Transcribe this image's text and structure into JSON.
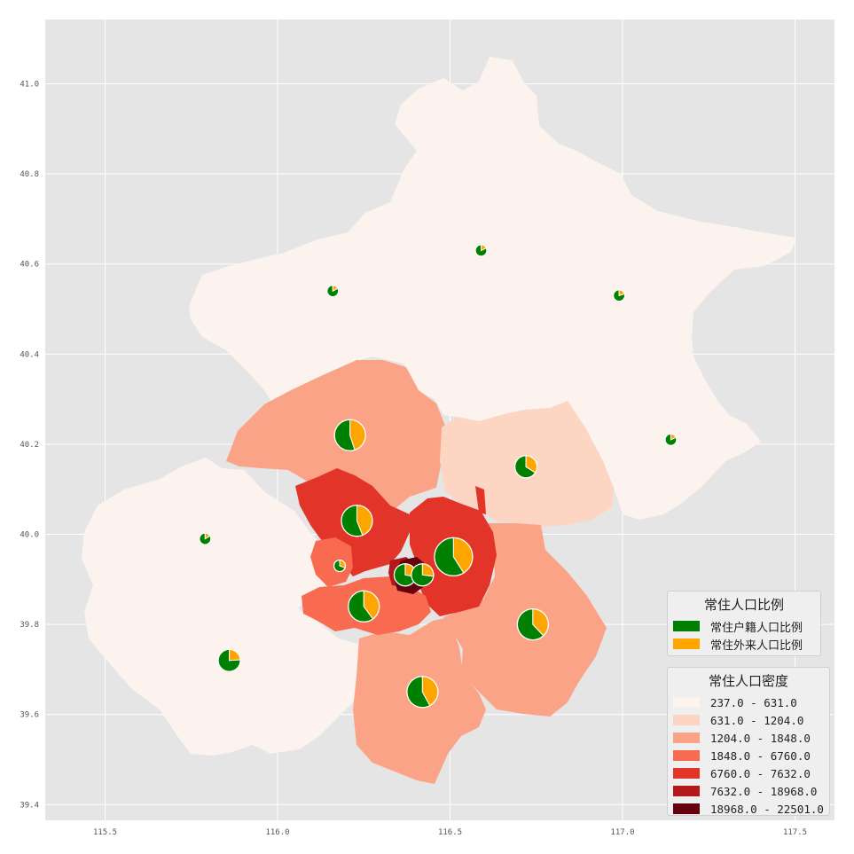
{
  "map": {
    "x_ticks": [
      "115.5",
      "116.0",
      "116.5",
      "117.0",
      "117.5"
    ],
    "y_ticks": [
      "41.0",
      "40.8",
      "40.6",
      "40.4",
      "40.2",
      "40.0",
      "39.8",
      "39.6",
      "39.4"
    ],
    "background_color": "#e5e5e5",
    "grid_color": "#ffffff"
  },
  "ratio_legend": {
    "title": "常住人口比例",
    "items": [
      {
        "label": "常住户籍人口比例",
        "color": "#008000"
      },
      {
        "label": "常住外来人口比例",
        "color": "#ffa500"
      }
    ]
  },
  "density_legend": {
    "title": "常住人口密度",
    "items": [
      {
        "label": "237.0 - 631.0",
        "color": "#fdf3ee"
      },
      {
        "label": "631.0 - 1204.0",
        "color": "#fcd5c3"
      },
      {
        "label": "1204.0 - 1848.0",
        "color": "#fba386"
      },
      {
        "label": "1848.0 - 6760.0",
        "color": "#f86b50"
      },
      {
        "label": "6760.0 - 7632.0",
        "color": "#e3342a"
      },
      {
        "label": "7632.0 - 18968.0",
        "color": "#b3181d"
      },
      {
        "label": "18968.0 - 22501.0",
        "color": "#67000d"
      }
    ]
  },
  "pies": [
    {
      "lon": 116.59,
      "lat": 40.63,
      "size": "small",
      "registered_share": 0.82
    },
    {
      "lon": 116.16,
      "lat": 40.54,
      "size": "small",
      "registered_share": 0.83
    },
    {
      "lon": 116.99,
      "lat": 40.53,
      "size": "small",
      "registered_share": 0.8
    },
    {
      "lon": 117.14,
      "lat": 40.21,
      "size": "small",
      "registered_share": 0.82
    },
    {
      "lon": 115.79,
      "lat": 39.99,
      "size": "small",
      "registered_share": 0.84
    },
    {
      "lon": 116.21,
      "lat": 40.22,
      "size": "large",
      "registered_share": 0.55
    },
    {
      "lon": 116.72,
      "lat": 40.15,
      "size": "medium",
      "registered_share": 0.66
    },
    {
      "lon": 116.23,
      "lat": 40.03,
      "size": "large",
      "registered_share": 0.56
    },
    {
      "lon": 116.51,
      "lat": 39.95,
      "size": "xlarge",
      "registered_share": 0.59
    },
    {
      "lon": 116.18,
      "lat": 39.93,
      "size": "small",
      "registered_share": 0.7
    },
    {
      "lon": 116.37,
      "lat": 39.91,
      "size": "medium",
      "registered_share": 0.72
    },
    {
      "lon": 116.42,
      "lat": 39.91,
      "size": "medium",
      "registered_share": 0.73
    },
    {
      "lon": 116.25,
      "lat": 39.84,
      "size": "large",
      "registered_share": 0.6
    },
    {
      "lon": 116.74,
      "lat": 39.8,
      "size": "large",
      "registered_share": 0.62
    },
    {
      "lon": 115.86,
      "lat": 39.72,
      "size": "medium",
      "registered_share": 0.76
    },
    {
      "lon": 116.42,
      "lat": 39.65,
      "size": "large",
      "registered_share": 0.58
    }
  ]
}
